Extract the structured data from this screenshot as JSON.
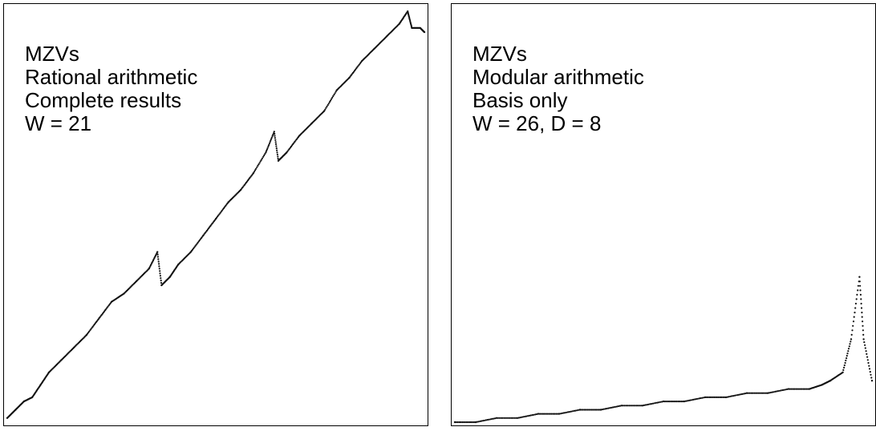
{
  "charts": [
    {
      "id": "left",
      "labels": [
        "MZVs",
        "Rational arithmetic",
        "Complete results",
        "W = 21"
      ]
    },
    {
      "id": "right",
      "labels": [
        "MZVs",
        "Modular arithmetic",
        "Basis only",
        "W = 26, D = 8"
      ]
    }
  ],
  "chart_data": [
    {
      "type": "scatter",
      "title": "",
      "xlabel": "",
      "ylabel": "",
      "xlim": [
        0,
        1
      ],
      "ylim": [
        0,
        1
      ],
      "grid": false,
      "series": [
        {
          "x": [
            0.0,
            0.02,
            0.04,
            0.06,
            0.08,
            0.1,
            0.13,
            0.16,
            0.19,
            0.22,
            0.25,
            0.28,
            0.31,
            0.34,
            0.36,
            0.37,
            0.39,
            0.41,
            0.44,
            0.47,
            0.5,
            0.53,
            0.56,
            0.59,
            0.62,
            0.64,
            0.65,
            0.67,
            0.7,
            0.73,
            0.76,
            0.79,
            0.82,
            0.85,
            0.88,
            0.91,
            0.94,
            0.96,
            0.97,
            0.99,
            1.0
          ],
          "y": [
            0.01,
            0.03,
            0.05,
            0.06,
            0.09,
            0.12,
            0.15,
            0.18,
            0.21,
            0.25,
            0.29,
            0.31,
            0.34,
            0.37,
            0.41,
            0.33,
            0.35,
            0.38,
            0.41,
            0.45,
            0.49,
            0.53,
            0.56,
            0.6,
            0.65,
            0.7,
            0.63,
            0.65,
            0.69,
            0.72,
            0.75,
            0.8,
            0.83,
            0.87,
            0.9,
            0.93,
            0.96,
            0.99,
            0.95,
            0.95,
            0.94
          ]
        }
      ]
    },
    {
      "type": "scatter",
      "title": "",
      "xlabel": "",
      "ylabel": "",
      "xlim": [
        0,
        1
      ],
      "ylim": [
        0,
        1
      ],
      "grid": false,
      "series": [
        {
          "x": [
            0.0,
            0.05,
            0.1,
            0.15,
            0.2,
            0.25,
            0.3,
            0.35,
            0.4,
            0.45,
            0.5,
            0.55,
            0.6,
            0.65,
            0.7,
            0.75,
            0.8,
            0.85,
            0.88,
            0.9,
            0.93,
            0.95,
            0.97,
            0.98,
            1.0
          ],
          "y": [
            0.0,
            0.0,
            0.01,
            0.01,
            0.02,
            0.02,
            0.03,
            0.03,
            0.04,
            0.04,
            0.05,
            0.05,
            0.06,
            0.06,
            0.07,
            0.07,
            0.08,
            0.08,
            0.09,
            0.1,
            0.12,
            0.2,
            0.35,
            0.2,
            0.1
          ]
        }
      ]
    }
  ]
}
